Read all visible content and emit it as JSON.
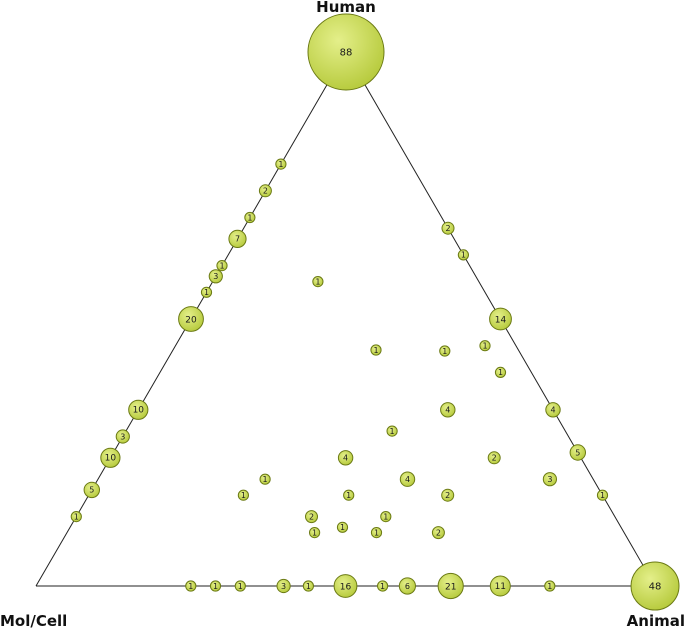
{
  "chart_data": {
    "type": "ternary-bubble",
    "vertices": {
      "top": "Human",
      "left": "Mol/Cell",
      "right": "Animal"
    },
    "bubble_color": "#b5c93a",
    "bubble_stroke": "#6b7a14",
    "points": [
      {
        "human": 1.0,
        "animal": 0.0,
        "count": "88"
      },
      {
        "human": 0.0,
        "animal": 1.0,
        "count": "48"
      },
      {
        "human": 0.79,
        "animal": 0.0,
        "count": "1"
      },
      {
        "human": 0.74,
        "animal": 0.0,
        "count": "2"
      },
      {
        "human": 0.69,
        "animal": 0.0,
        "count": "1"
      },
      {
        "human": 0.65,
        "animal": 0.0,
        "count": "7"
      },
      {
        "human": 0.6,
        "animal": 0.0,
        "count": "1"
      },
      {
        "human": 0.58,
        "animal": 0.0,
        "count": "3"
      },
      {
        "human": 0.55,
        "animal": 0.0,
        "count": "1"
      },
      {
        "human": 0.5,
        "animal": 0.0,
        "count": "20"
      },
      {
        "human": 0.33,
        "animal": 0.0,
        "count": "10"
      },
      {
        "human": 0.28,
        "animal": 0.0,
        "count": "3"
      },
      {
        "human": 0.24,
        "animal": 0.0,
        "count": "10"
      },
      {
        "human": 0.18,
        "animal": 0.0,
        "count": "5"
      },
      {
        "human": 0.13,
        "animal": 0.0,
        "count": "1"
      },
      {
        "human": 0.67,
        "animal": 0.33,
        "count": "2"
      },
      {
        "human": 0.62,
        "animal": 0.38,
        "count": "1"
      },
      {
        "human": 0.5,
        "animal": 0.5,
        "count": "14"
      },
      {
        "human": 0.33,
        "animal": 0.67,
        "count": "4"
      },
      {
        "human": 0.25,
        "animal": 0.75,
        "count": "5"
      },
      {
        "human": 0.17,
        "animal": 0.83,
        "count": "1"
      },
      {
        "human": 0.0,
        "animal": 0.25,
        "count": "1"
      },
      {
        "human": 0.0,
        "animal": 0.29,
        "count": "1"
      },
      {
        "human": 0.0,
        "animal": 0.33,
        "count": "1"
      },
      {
        "human": 0.0,
        "animal": 0.4,
        "count": "3"
      },
      {
        "human": 0.0,
        "animal": 0.44,
        "count": "1"
      },
      {
        "human": 0.0,
        "animal": 0.5,
        "count": "16"
      },
      {
        "human": 0.0,
        "animal": 0.56,
        "count": "1"
      },
      {
        "human": 0.0,
        "animal": 0.6,
        "count": "6"
      },
      {
        "human": 0.0,
        "animal": 0.67,
        "count": "21"
      },
      {
        "human": 0.0,
        "animal": 0.75,
        "count": "11"
      },
      {
        "human": 0.0,
        "animal": 0.83,
        "count": "1"
      },
      {
        "human": 0.57,
        "animal": 0.17,
        "count": "1"
      },
      {
        "human": 0.5,
        "animal": 0.5,
        "count": "1",
        "offset": "interior"
      },
      {
        "human": 0.44,
        "animal": 0.44,
        "count": "1"
      },
      {
        "human": 0.45,
        "animal": 0.5,
        "count": "1"
      },
      {
        "human": 0.4,
        "animal": 0.55,
        "count": "1"
      },
      {
        "human": 0.33,
        "animal": 0.5,
        "count": "4"
      },
      {
        "human": 0.29,
        "animal": 0.43,
        "count": "1"
      },
      {
        "human": 0.24,
        "animal": 0.38,
        "count": "4"
      },
      {
        "human": 0.24,
        "animal": 0.62,
        "count": "2"
      },
      {
        "human": 0.2,
        "animal": 0.27,
        "count": "1"
      },
      {
        "human": 0.2,
        "animal": 0.5,
        "count": "4"
      },
      {
        "human": 0.2,
        "animal": 0.73,
        "count": "3"
      },
      {
        "human": 0.17,
        "animal": 0.25,
        "count": "1"
      },
      {
        "human": 0.17,
        "animal": 0.42,
        "count": "1"
      },
      {
        "human": 0.17,
        "animal": 0.58,
        "count": "2"
      },
      {
        "human": 0.13,
        "animal": 0.38,
        "count": "2"
      },
      {
        "human": 0.13,
        "animal": 0.5,
        "count": "1"
      },
      {
        "human": 0.11,
        "animal": 0.44,
        "count": "1"
      },
      {
        "human": 0.1,
        "animal": 0.4,
        "count": "1"
      },
      {
        "human": 0.1,
        "animal": 0.5,
        "count": "1"
      },
      {
        "human": 0.1,
        "animal": 0.6,
        "count": "2"
      }
    ]
  }
}
